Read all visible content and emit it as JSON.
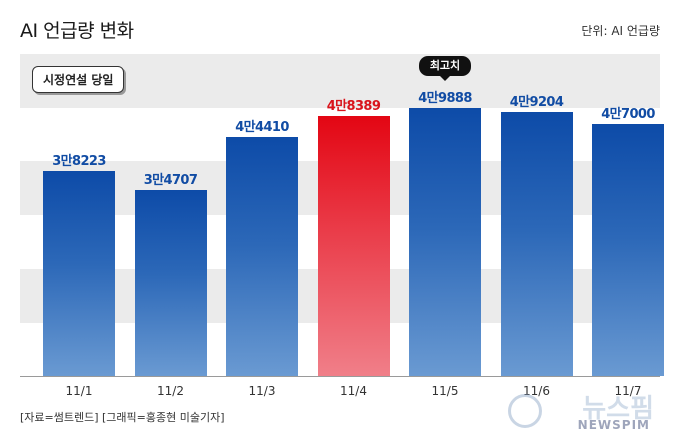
{
  "title": "AI 언급량 변화",
  "unit": "단위: AI 언급량",
  "note": "시정연설 당일",
  "highlight_label": "최고치",
  "source": "[자료=썸트렌드] [그래픽=홍종현 미술기자]",
  "watermark": {
    "ko": "뉴스핌",
    "en": "NEWSPIM"
  },
  "colors": {
    "bar": "#0d4ba8",
    "highlight_bar": "#e30613",
    "band": "#ebebeb"
  },
  "chart_data": {
    "type": "bar",
    "title": "AI 언급량 변화",
    "unit": "단위: AI 언급량",
    "categories": [
      "11/1",
      "11/2",
      "11/3",
      "11/4",
      "11/5",
      "11/6",
      "11/7"
    ],
    "values": [
      38223,
      34707,
      44410,
      48389,
      49888,
      49204,
      47000
    ],
    "value_labels": [
      "3만8223",
      "3만4707",
      "4만4410",
      "4만8389",
      "4만9888",
      "4만9204",
      "4만7000"
    ],
    "highlight_category": "11/4",
    "max_category": "11/5",
    "ylim": [
      0,
      55000
    ],
    "grid": true,
    "legend": "none"
  }
}
